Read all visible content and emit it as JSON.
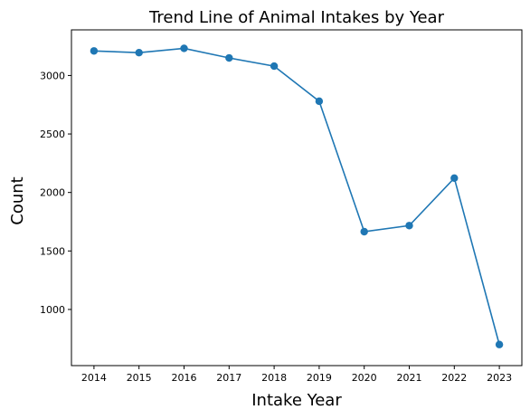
{
  "chart_data": {
    "type": "line",
    "title": "Trend Line of Animal Intakes by Year",
    "xlabel": "Intake Year",
    "ylabel": "Count",
    "x": [
      2014,
      2015,
      2016,
      2017,
      2018,
      2019,
      2020,
      2021,
      2022,
      2023
    ],
    "series": [
      {
        "values": [
          3210,
          3195,
          3232,
          3150,
          3080,
          2780,
          1665,
          1717,
          2123,
          700
        ]
      }
    ],
    "ylim": [
      520,
      3390
    ],
    "yticks": [
      1000,
      1500,
      2000,
      2500,
      3000
    ],
    "grid": false,
    "legend": "none",
    "color": "#1f77b4"
  }
}
